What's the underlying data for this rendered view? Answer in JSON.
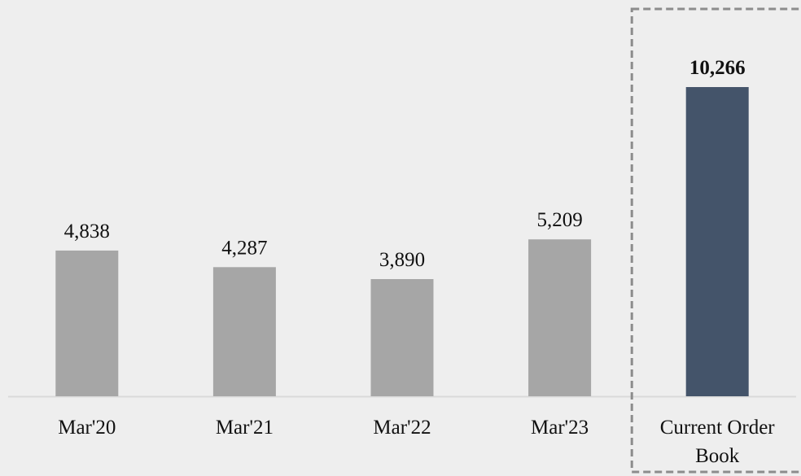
{
  "chart_data": {
    "type": "bar",
    "categories": [
      "Mar'20",
      "Mar'21",
      "Mar'22",
      "Mar'23",
      "Current Order Book"
    ],
    "values": [
      4838,
      4287,
      3890,
      5209,
      10266
    ],
    "value_labels": [
      "4,838",
      "4,287",
      "3,890",
      "5,209",
      "10,266"
    ],
    "colors": [
      "#a6a6a6",
      "#a6a6a6",
      "#a6a6a6",
      "#a6a6a6",
      "#44546a"
    ],
    "highlight_index": 4
  }
}
